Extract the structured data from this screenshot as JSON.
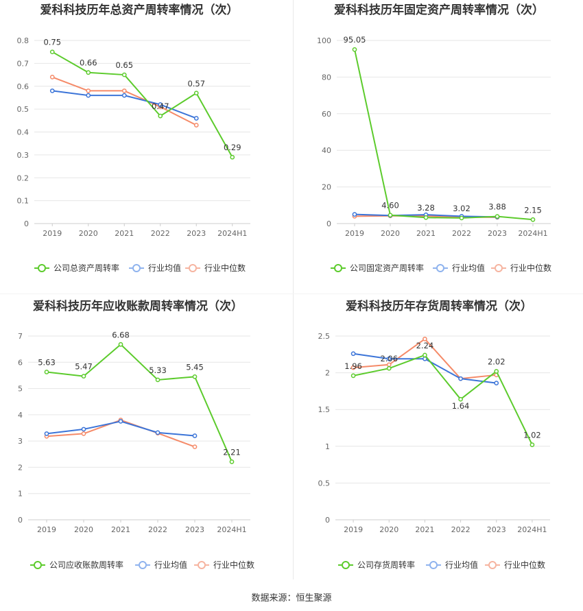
{
  "footer": {
    "source_label": "数据来源：",
    "source_value": "恒生聚源"
  },
  "colors": {
    "company": "#5ccb2c",
    "avg": "#3b74d8",
    "median": "#f58a68",
    "avg_legend": "#8fb3ee",
    "median_legend": "#f6b4a0",
    "grid": "#e6e6e6"
  },
  "chart_data": [
    {
      "type": "line",
      "title": "爱科科技历年总资产周转率情况（次）",
      "categories": [
        "2019",
        "2020",
        "2021",
        "2022",
        "2023",
        "2024H1"
      ],
      "ylim": [
        0,
        0.8
      ],
      "yticks": [
        "0",
        "0.1",
        "0.2",
        "0.3",
        "0.4",
        "0.5",
        "0.6",
        "0.7",
        "0.8"
      ],
      "grid": true,
      "legend_position": "bottom",
      "series": [
        {
          "name": "公司总资产周转率",
          "values": [
            0.75,
            0.66,
            0.65,
            0.47,
            0.57,
            0.29
          ],
          "labels": [
            "0.75",
            "0.66",
            "0.65",
            "0.47",
            "0.57",
            "0.29"
          ]
        },
        {
          "name": "行业均值",
          "values": [
            0.58,
            0.56,
            0.56,
            0.52,
            0.46,
            null
          ]
        },
        {
          "name": "行业中位数",
          "values": [
            0.64,
            0.58,
            0.58,
            0.51,
            0.43,
            null
          ]
        }
      ]
    },
    {
      "type": "line",
      "title": "爱科科技历年固定资产周转率情况（次）",
      "categories": [
        "2019",
        "2020",
        "2021",
        "2022",
        "2023",
        "2024H1"
      ],
      "ylim": [
        0,
        100
      ],
      "yticks": [
        "0",
        "20",
        "40",
        "60",
        "80",
        "100"
      ],
      "grid": true,
      "legend_position": "bottom",
      "series": [
        {
          "name": "公司固定资产周转率",
          "values": [
            95.05,
            4.6,
            3.28,
            3.02,
            3.88,
            2.15
          ],
          "labels": [
            "95.05",
            "4.60",
            "3.28",
            "3.02",
            "3.88",
            "2.15"
          ]
        },
        {
          "name": "行业均值",
          "values": [
            5.0,
            4.4,
            4.8,
            4.0,
            3.6,
            null
          ]
        },
        {
          "name": "行业中位数",
          "values": [
            4.0,
            4.2,
            4.1,
            3.5,
            3.4,
            null
          ]
        }
      ]
    },
    {
      "type": "line",
      "title": "爱科科技历年应收账款周转率情况（次）",
      "categories": [
        "2019",
        "2020",
        "2021",
        "2022",
        "2023",
        "2024H1"
      ],
      "ylim": [
        0,
        7
      ],
      "yticks": [
        "0",
        "1",
        "2",
        "3",
        "4",
        "5",
        "6",
        "7"
      ],
      "grid": true,
      "legend_position": "bottom",
      "series": [
        {
          "name": "公司应收账款周转率",
          "values": [
            5.63,
            5.47,
            6.68,
            5.33,
            5.45,
            2.21
          ],
          "labels": [
            "5.63",
            "5.47",
            "6.68",
            "5.33",
            "5.45",
            "2.21"
          ]
        },
        {
          "name": "行业均值",
          "values": [
            3.28,
            3.45,
            3.75,
            3.32,
            3.2,
            null
          ]
        },
        {
          "name": "行业中位数",
          "values": [
            3.18,
            3.28,
            3.8,
            3.3,
            2.78,
            null
          ]
        }
      ]
    },
    {
      "type": "line",
      "title": "爱科科技历年存货周转率情况（次）",
      "categories": [
        "2019",
        "2020",
        "2021",
        "2022",
        "2023",
        "2024H1"
      ],
      "ylim": [
        0,
        2.5
      ],
      "yticks": [
        "0",
        "0.5",
        "1",
        "1.5",
        "2",
        "2.5"
      ],
      "grid": true,
      "legend_position": "bottom",
      "series": [
        {
          "name": "公司存货周转率",
          "values": [
            1.96,
            2.06,
            2.24,
            1.64,
            2.02,
            1.02
          ],
          "labels": [
            "1.96",
            "2.06",
            "2.24",
            "1.64",
            "2.02",
            "1.02"
          ]
        },
        {
          "name": "行业均值",
          "values": [
            2.26,
            2.19,
            2.19,
            1.92,
            1.86,
            null
          ]
        },
        {
          "name": "行业中位数",
          "values": [
            2.07,
            2.11,
            2.46,
            1.92,
            1.97,
            null
          ]
        }
      ]
    }
  ]
}
